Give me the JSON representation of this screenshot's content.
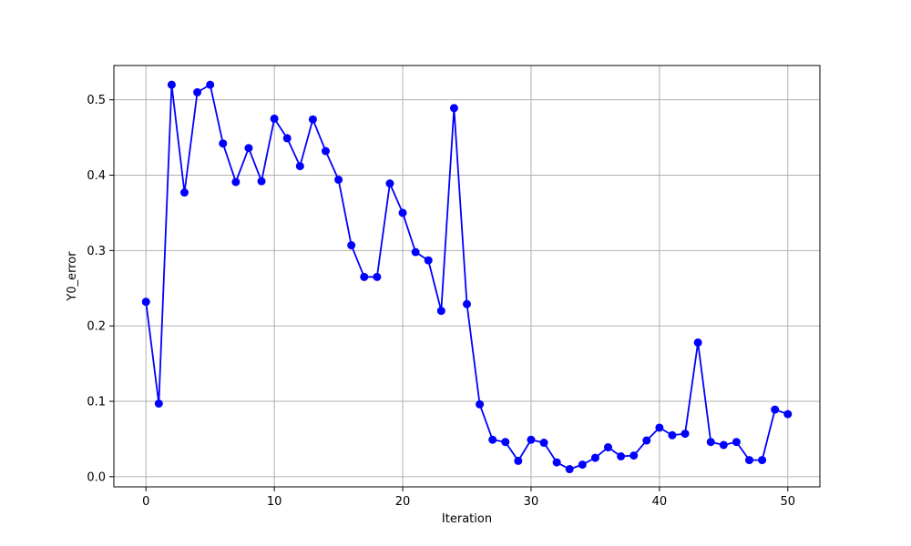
{
  "chart_data": {
    "type": "line",
    "title": "",
    "xlabel": "Iteration",
    "ylabel": "Y0_error",
    "xlim": [
      -2.5,
      52.5
    ],
    "ylim": [
      -0.0135,
      0.5455
    ],
    "xticks": [
      0,
      10,
      20,
      30,
      40,
      50
    ],
    "xtick_labels": [
      "0",
      "10",
      "20",
      "30",
      "40",
      "50"
    ],
    "yticks": [
      0.0,
      0.1,
      0.2,
      0.3,
      0.4,
      0.5
    ],
    "ytick_labels": [
      "0.0",
      "0.1",
      "0.2",
      "0.3",
      "0.4",
      "0.5"
    ],
    "grid": true,
    "legend": "none",
    "series": [
      {
        "color": "#0000ff",
        "marker": "circle",
        "x": [
          0,
          1,
          2,
          3,
          4,
          5,
          6,
          7,
          8,
          9,
          10,
          11,
          12,
          13,
          14,
          15,
          16,
          17,
          18,
          19,
          20,
          21,
          22,
          23,
          24,
          25,
          26,
          27,
          28,
          29,
          30,
          31,
          32,
          33,
          34,
          35,
          36,
          37,
          38,
          39,
          40,
          41,
          42,
          43,
          44,
          45,
          46,
          47,
          48,
          49,
          50
        ],
        "values": [
          0.232,
          0.097,
          0.52,
          0.377,
          0.51,
          0.52,
          0.442,
          0.391,
          0.436,
          0.392,
          0.475,
          0.449,
          0.412,
          0.474,
          0.432,
          0.394,
          0.307,
          0.265,
          0.265,
          0.389,
          0.35,
          0.298,
          0.287,
          0.22,
          0.489,
          0.229,
          0.096,
          0.049,
          0.046,
          0.021,
          0.049,
          0.045,
          0.019,
          0.01,
          0.016,
          0.025,
          0.039,
          0.027,
          0.028,
          0.048,
          0.065,
          0.055,
          0.057,
          0.178,
          0.046,
          0.042,
          0.046,
          0.022,
          0.022,
          0.089,
          0.083
        ]
      }
    ]
  }
}
